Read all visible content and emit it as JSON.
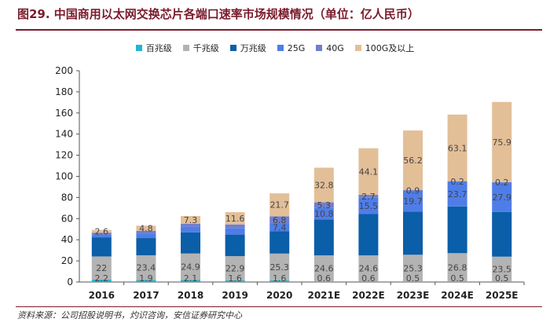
{
  "figure": {
    "title": "图29. 中国商用以太网交换芯片各端口速率市场规模情况（单位：亿人民币）",
    "source": "资料来源：公司招股说明书，灼识咨询，安信证券研究中心"
  },
  "chart_data": {
    "type": "bar",
    "stacked": true,
    "categories": [
      "2016",
      "2017",
      "2018",
      "2019",
      "2020",
      "2021E",
      "2022E",
      "2023E",
      "2024E",
      "2025E"
    ],
    "series": [
      {
        "name": "百兆级",
        "color": "#1fb5d6",
        "values": [
          2.2,
          1.9,
          2.1,
          1.6,
          1.6,
          0.6,
          0.6,
          0.5,
          0.5,
          0.5
        ]
      },
      {
        "name": "千兆级",
        "color": "#b3b3b3",
        "values": [
          22,
          23.4,
          24.9,
          22.9,
          25.3,
          24.6,
          24.6,
          25.3,
          26.8,
          23.5
        ]
      },
      {
        "name": "万兆级",
        "color": "#0b5ea8",
        "values": [
          18.1,
          16.3,
          19.9,
          20.4,
          21.1,
          34.1,
          39.1,
          40.8,
          44.2,
          42.4
        ]
      },
      {
        "name": "25G",
        "color": "#4f7de8",
        "values": [
          2.6,
          3.8,
          5.2,
          6.2,
          7.4,
          10.8,
          15.5,
          19.7,
          23.7,
          27.9
        ]
      },
      {
        "name": "40G",
        "color": "#6f7fcf",
        "values": [
          1.8,
          3.1,
          3.1,
          3.4,
          6.8,
          5.3,
          2.7,
          0.9,
          0.2,
          0.2
        ]
      },
      {
        "name": "100G及以上",
        "color": "#e3bf98",
        "values": [
          2.6,
          4.8,
          7.3,
          11.6,
          21.7,
          32.8,
          44.1,
          56.2,
          63.1,
          75.9
        ]
      }
    ],
    "data_labels": [
      [
        "2.2",
        "22",
        "",
        "",
        "",
        "2.6"
      ],
      [
        "1.9",
        "23.4",
        "",
        "",
        "",
        "4.8"
      ],
      [
        "2.1",
        "24.9",
        "",
        "",
        "",
        "7.3"
      ],
      [
        "1.6",
        "22.9",
        "",
        "",
        "",
        "11.6"
      ],
      [
        "1.6",
        "25.3",
        "",
        "7.4",
        "6.8",
        "21.7"
      ],
      [
        "0.6",
        "24.6",
        "",
        "10.8",
        "5.3",
        "32.8"
      ],
      [
        "0.6",
        "24.6",
        "",
        "15.5",
        "2.7",
        "44.1"
      ],
      [
        "0.5",
        "25.3",
        "",
        "19.7",
        "0.9",
        "56.2"
      ],
      [
        "0.5",
        "26.8",
        "",
        "23.7",
        "0.2",
        "63.1"
      ],
      [
        "0.5",
        "23.5",
        "",
        "27.9",
        "0.2",
        "75.9"
      ]
    ],
    "ylim": [
      0,
      200
    ],
    "yticks": [
      0,
      20,
      40,
      60,
      80,
      100,
      120,
      140,
      160,
      180,
      200
    ],
    "grid": false,
    "legend_position": "top-center",
    "xlabel": "",
    "ylabel": ""
  }
}
